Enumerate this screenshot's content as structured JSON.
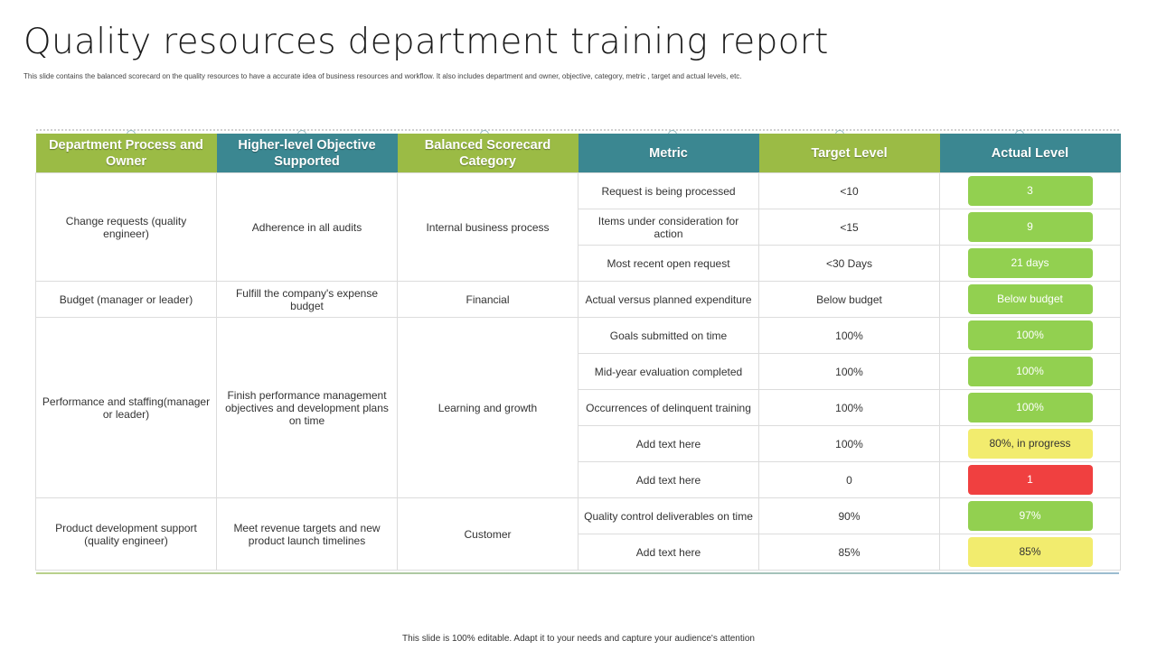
{
  "title": "Quality resources department training report",
  "subtitle": "This slide contains the balanced scorecard on the quality resources to have a accurate idea of business resources and workflow.  It also includes department and owner, objective, category, metric , target and actual levels, etc.",
  "footer": "This slide is 100% editable.  Adapt it to your needs and capture your audience's attention",
  "colors": {
    "header_green": "#9bbb45",
    "header_teal": "#3b8791",
    "status_green": "#92d050",
    "status_yellow": "#f2ec6e",
    "status_red": "#f04040"
  },
  "table": {
    "headers": [
      "Department Process and Owner",
      "Higher-level Objective Supported",
      "Balanced Scorecard Category",
      "Metric",
      "Target Level",
      "Actual Level"
    ],
    "groups": [
      {
        "owner": "Change requests (quality engineer)",
        "objective": "Adherence in all audits",
        "category": "Internal business process",
        "rows": [
          {
            "metric": "Request is being processed",
            "target": "<10",
            "actual": "3",
            "status": "green"
          },
          {
            "metric": "Items under consideration for action",
            "target": "<15",
            "actual": "9",
            "status": "green"
          },
          {
            "metric": "Most recent open request",
            "target": "<30 Days",
            "actual": "21 days",
            "status": "green"
          }
        ]
      },
      {
        "owner": "Budget (manager or leader)",
        "objective": "Fulfill the company's expense budget",
        "category": "Financial",
        "rows": [
          {
            "metric": "Actual versus planned expenditure",
            "target": "Below budget",
            "actual": "Below budget",
            "status": "green"
          }
        ]
      },
      {
        "owner": "Performance and staffing(manager or leader)",
        "objective": "Finish performance management objectives and development plans on time",
        "category": "Learning and growth",
        "rows": [
          {
            "metric": "Goals submitted on time",
            "target": "100%",
            "actual": "100%",
            "status": "green"
          },
          {
            "metric": "Mid-year evaluation completed",
            "target": "100%",
            "actual": "100%",
            "status": "green"
          },
          {
            "metric": "Occurrences of delinquent training",
            "target": "100%",
            "actual": "100%",
            "status": "green"
          },
          {
            "metric": "Add text here",
            "target": "100%",
            "actual": "80%, in progress",
            "status": "yellow"
          },
          {
            "metric": "Add text here",
            "target": "0",
            "actual": "1",
            "status": "red"
          }
        ]
      },
      {
        "owner": "Product development support (quality engineer)",
        "objective": "Meet revenue targets and new product launch timelines",
        "category": "Customer",
        "rows": [
          {
            "metric": "Quality control deliverables on time",
            "target": "90%",
            "actual": "97%",
            "status": "green"
          },
          {
            "metric": "Add text here",
            "target": "85%",
            "actual": "85%",
            "status": "yellow"
          }
        ]
      }
    ]
  }
}
